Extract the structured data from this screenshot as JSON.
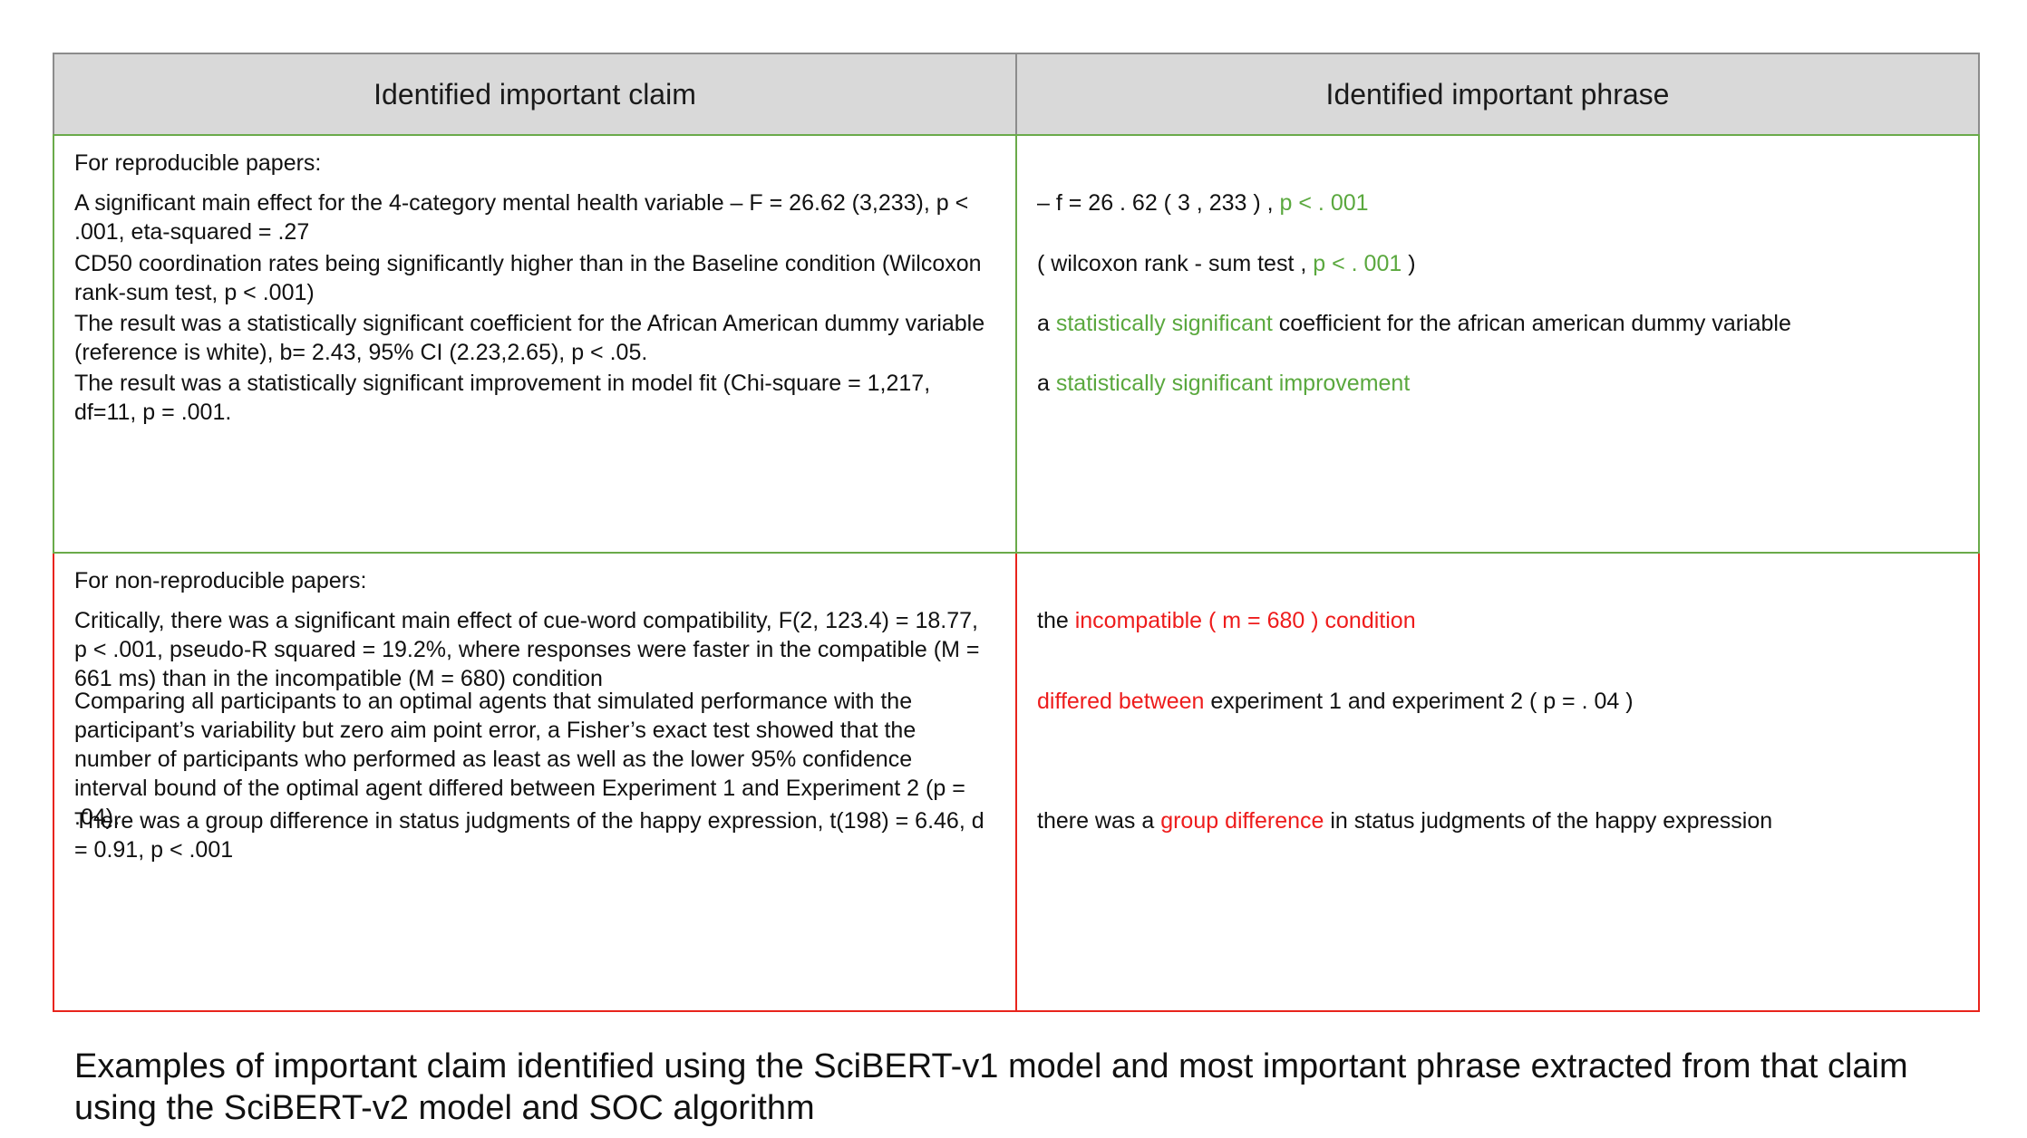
{
  "table": {
    "headers": {
      "claim": "Identified important claim",
      "phrase": "Identified important phrase"
    },
    "reproducible": {
      "label": "For reproducible papers:",
      "rows": [
        {
          "claim": "A significant main effect for the 4-category mental health variable – F = 26.62 (3,233), p < .001, eta-squared = .27",
          "phrase_pre": "– f = 26 . 62 ( 3 , 233 ) , ",
          "phrase_hl": "p < . 001",
          "phrase_post": ""
        },
        {
          "claim": "CD50 coordination rates being significantly higher than in the Baseline condition (Wilcoxon rank-sum test, p < .001)",
          "phrase_pre": "( wilcoxon rank - sum test , ",
          "phrase_hl": "p < . 001",
          "phrase_post": " )"
        },
        {
          "claim": "The result was a statistically significant coefficient for the African American dummy variable (reference is white), b= 2.43, 95% CI (2.23,2.65), p < .05.",
          "phrase_pre": "a ",
          "phrase_hl": "statistically significant",
          "phrase_post": " coefficient for the african american dummy variable"
        },
        {
          "claim": "The result was a statistically significant improvement in model fit (Chi-square = 1,217, df=11, p = .001.",
          "phrase_pre": "a ",
          "phrase_hl": "statistically significant improvement",
          "phrase_post": ""
        }
      ]
    },
    "non_reproducible": {
      "label": "For non-reproducible papers:",
      "rows": [
        {
          "claim": "Critically, there was a significant main effect of cue-word compatibility, F(2, 123.4) = 18.77, p < .001, pseudo-R squared =  19.2%, where responses were faster in the compatible (M = 661 ms) than in the incompatible (M = 680) condition",
          "phrase_pre": "the ",
          "phrase_hl": "incompatible ( m = 680 ) condition",
          "phrase_post": ""
        },
        {
          "claim": "Comparing all participants to an optimal agents that simulated performance with the participant’s variability but zero aim point error,  a Fisher’s exact test showed that the number of participants who performed as least as well as the lower 95% confidence interval bound of the optimal agent differed between Experiment 1 and Experiment 2 (p = .04).",
          "phrase_pre": "",
          "phrase_hl": "differed between",
          "phrase_post": " experiment 1 and experiment 2 ( p = . 04 )"
        },
        {
          "claim": "There was a group difference in status judgments of the happy expression, t(198) = 6.46, d = 0.91, p < .001",
          "phrase_pre": "there was a ",
          "phrase_hl": "group difference",
          "phrase_post": " in status judgments of the happy expression"
        }
      ]
    }
  },
  "caption": "Examples of important claim identified using the SciBERT-v1 model and most important phrase extracted from that claim using the SciBERT-v2 model and SOC algorithm",
  "colors": {
    "reproducible_accent": "#5aa83e",
    "non_reproducible_accent": "#ee1c1c",
    "header_bg": "#d9d9d9"
  }
}
